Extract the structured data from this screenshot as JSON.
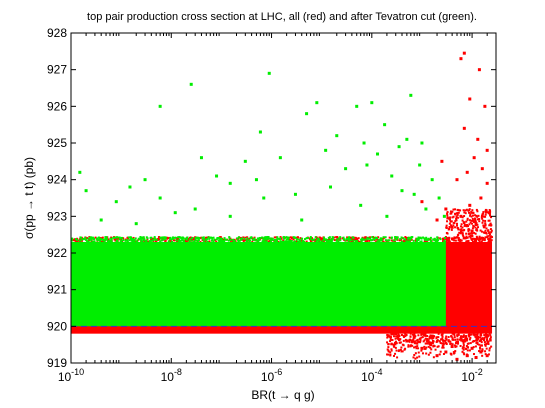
{
  "chart_data": {
    "type": "scatter",
    "title": "top pair production cross section at LHC, all (red) and after Tevatron cut (green).",
    "xlabel_parts": [
      "BR(t ",
      "→",
      " q g)"
    ],
    "ylabel_parts": [
      "σ(pp ",
      "→",
      " t t) (pb)"
    ],
    "x_scale": "log",
    "xlim": [
      1e-10,
      0.03
    ],
    "ylim": [
      919,
      928
    ],
    "x_ticks": [
      {
        "value": 1e-10,
        "base": "10",
        "exp": "-10"
      },
      {
        "value": 1e-08,
        "base": "10",
        "exp": "-8"
      },
      {
        "value": 1e-06,
        "base": "10",
        "exp": "-6"
      },
      {
        "value": 0.0001,
        "base": "10",
        "exp": "-4"
      },
      {
        "value": 0.01,
        "base": "10",
        "exp": "-2"
      }
    ],
    "y_ticks": [
      {
        "value": 919,
        "label": "919"
      },
      {
        "value": 920,
        "label": "920"
      },
      {
        "value": 921,
        "label": "921"
      },
      {
        "value": 922,
        "label": "922"
      },
      {
        "value": 923,
        "label": "923"
      },
      {
        "value": 924,
        "label": "924"
      },
      {
        "value": 925,
        "label": "925"
      },
      {
        "value": 926,
        "label": "926"
      },
      {
        "value": 927,
        "label": "927"
      },
      {
        "value": 928,
        "label": "928"
      }
    ],
    "grid": false,
    "reference_line": {
      "y": 920.0,
      "style": "dashed",
      "color": "#3333cc"
    },
    "series": [
      {
        "color": "#ff0000",
        "dense_region": {
          "x_range": [
            1e-10,
            0.025
          ],
          "y_range": [
            919.8,
            922.3
          ]
        },
        "points": [
          [
            0.0003,
            919.8
          ],
          [
            0.0005,
            919.6
          ],
          [
            0.001,
            919.4
          ],
          [
            0.002,
            919.2
          ],
          [
            0.003,
            919.3
          ],
          [
            0.005,
            919.1
          ],
          [
            0.008,
            919.2
          ],
          [
            0.012,
            919.15
          ],
          [
            0.015,
            919.3
          ],
          [
            0.02,
            919.2
          ],
          [
            0.0015,
            919.5
          ],
          [
            0.004,
            919.45
          ],
          [
            0.007,
            919.6
          ],
          [
            0.01,
            919.4
          ],
          [
            0.0007,
            919.7
          ],
          [
            0.0002,
            919.85
          ],
          [
            0.006,
            923.0
          ],
          [
            0.009,
            923.3
          ],
          [
            0.012,
            922.8
          ],
          [
            0.015,
            923.5
          ],
          [
            0.02,
            923.9
          ],
          [
            0.008,
            924.2
          ],
          [
            0.011,
            924.6
          ],
          [
            0.007,
            925.4
          ],
          [
            0.009,
            926.2
          ],
          [
            0.013,
            925.1
          ],
          [
            0.018,
            926.0
          ],
          [
            0.006,
            927.3
          ],
          [
            0.007,
            927.45
          ],
          [
            0.014,
            927.0
          ],
          [
            0.02,
            924.8
          ],
          [
            0.004,
            922.7
          ],
          [
            0.003,
            923.2
          ],
          [
            0.002,
            922.9
          ],
          [
            0.005,
            924.0
          ],
          [
            0.016,
            924.3
          ],
          [
            0.022,
            923.1
          ],
          [
            0.01,
            922.6
          ],
          [
            0.0025,
            924.5
          ],
          [
            0.001,
            923.4
          ]
        ]
      },
      {
        "color": "#00ee00",
        "dense_region": {
          "x_range": [
            1e-10,
            0.003
          ],
          "y_range": [
            920.0,
            922.3
          ]
        },
        "points": [
          [
            1.5e-10,
            924.2
          ],
          [
            2e-10,
            923.7
          ],
          [
            4e-10,
            922.9
          ],
          [
            8e-10,
            923.4
          ],
          [
            1.5e-09,
            923.8
          ],
          [
            3e-09,
            924.0
          ],
          [
            6e-09,
            923.5
          ],
          [
            1.2e-08,
            923.1
          ],
          [
            2.5e-08,
            926.6
          ],
          [
            6e-09,
            926.0
          ],
          [
            4e-08,
            924.6
          ],
          [
            8e-08,
            924.1
          ],
          [
            1.5e-07,
            923.9
          ],
          [
            3e-07,
            924.5
          ],
          [
            6e-07,
            925.3
          ],
          [
            9e-07,
            926.9
          ],
          [
            1.5e-06,
            924.6
          ],
          [
            3e-06,
            923.6
          ],
          [
            5e-06,
            925.8
          ],
          [
            8e-06,
            926.1
          ],
          [
            1.2e-05,
            924.8
          ],
          [
            2e-05,
            925.2
          ],
          [
            3e-05,
            924.3
          ],
          [
            5e-05,
            926.0
          ],
          [
            7e-05,
            925.0
          ],
          [
            0.0001,
            926.1
          ],
          [
            0.00013,
            924.7
          ],
          [
            0.00018,
            925.5
          ],
          [
            0.00025,
            924.1
          ],
          [
            0.00035,
            924.9
          ],
          [
            0.0005,
            925.1
          ],
          [
            0.0007,
            923.6
          ],
          [
            0.0009,
            924.4
          ],
          [
            0.0012,
            923.2
          ],
          [
            0.0016,
            924.0
          ],
          [
            0.0022,
            923.5
          ],
          [
            0.0028,
            923.0
          ],
          [
            1.5e-07,
            923.0
          ],
          [
            4e-06,
            922.9
          ],
          [
            6e-05,
            923.3
          ],
          [
            2e-09,
            922.8
          ],
          [
            3e-08,
            923.2
          ],
          [
            7e-07,
            923.5
          ],
          [
            0.0002,
            923.0
          ],
          [
            0.0004,
            923.7
          ],
          [
            0.001,
            925.0
          ],
          [
            0.0006,
            926.3
          ],
          [
            8e-05,
            924.4
          ],
          [
            1.5e-05,
            923.8
          ],
          [
            5e-07,
            924.0
          ]
        ]
      }
    ]
  }
}
